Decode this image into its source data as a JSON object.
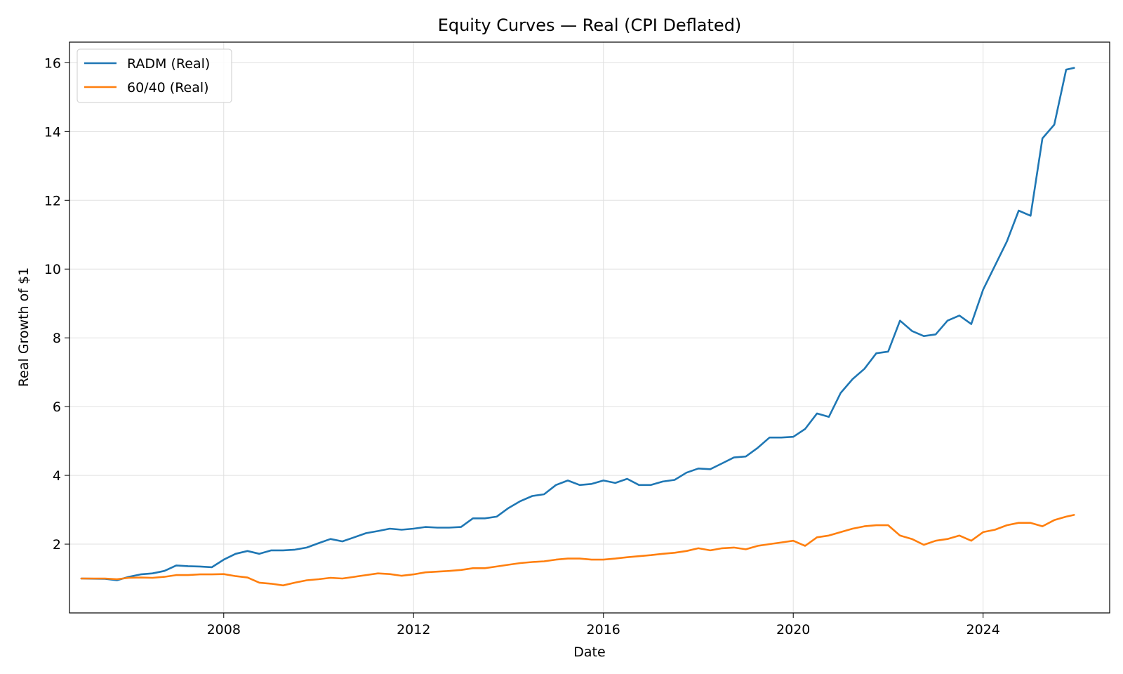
{
  "chart_data": {
    "type": "line",
    "title": "Equity Curves — Real (CPI Deflated)",
    "xlabel": "Date",
    "ylabel": "Real Growth of $1",
    "x_ticks": [
      "2008",
      "2012",
      "2016",
      "2020",
      "2024"
    ],
    "y_ticks": [
      "2",
      "4",
      "6",
      "8",
      "10",
      "12",
      "14",
      "16"
    ],
    "xlim": [
      "2004-10",
      "2026-09"
    ],
    "ylim": [
      0,
      16.6
    ],
    "grid": true,
    "legend_position": "top-left",
    "series": [
      {
        "name": "RADM (Real)",
        "color": "#1f77b4",
        "points": [
          [
            "2005-01",
            1.0
          ],
          [
            "2005-07",
            0.99
          ],
          [
            "2005-10",
            0.95
          ],
          [
            "2006-01",
            1.05
          ],
          [
            "2006-04",
            1.12
          ],
          [
            "2006-07",
            1.15
          ],
          [
            "2006-10",
            1.22
          ],
          [
            "2007-01",
            1.38
          ],
          [
            "2007-04",
            1.36
          ],
          [
            "2007-07",
            1.35
          ],
          [
            "2007-10",
            1.33
          ],
          [
            "2008-01",
            1.55
          ],
          [
            "2008-04",
            1.72
          ],
          [
            "2008-07",
            1.8
          ],
          [
            "2008-10",
            1.72
          ],
          [
            "2009-01",
            1.82
          ],
          [
            "2009-04",
            1.82
          ],
          [
            "2009-07",
            1.84
          ],
          [
            "2009-10",
            1.9
          ],
          [
            "2010-01",
            2.03
          ],
          [
            "2010-04",
            2.15
          ],
          [
            "2010-07",
            2.08
          ],
          [
            "2010-10",
            2.2
          ],
          [
            "2011-01",
            2.32
          ],
          [
            "2011-04",
            2.38
          ],
          [
            "2011-07",
            2.45
          ],
          [
            "2011-10",
            2.42
          ],
          [
            "2012-01",
            2.45
          ],
          [
            "2012-04",
            2.5
          ],
          [
            "2012-07",
            2.48
          ],
          [
            "2012-10",
            2.48
          ],
          [
            "2013-01",
            2.5
          ],
          [
            "2013-04",
            2.75
          ],
          [
            "2013-07",
            2.75
          ],
          [
            "2013-10",
            2.8
          ],
          [
            "2014-01",
            3.05
          ],
          [
            "2014-04",
            3.25
          ],
          [
            "2014-07",
            3.4
          ],
          [
            "2014-10",
            3.45
          ],
          [
            "2015-01",
            3.72
          ],
          [
            "2015-04",
            3.85
          ],
          [
            "2015-07",
            3.72
          ],
          [
            "2015-10",
            3.75
          ],
          [
            "2016-01",
            3.85
          ],
          [
            "2016-04",
            3.78
          ],
          [
            "2016-07",
            3.9
          ],
          [
            "2016-10",
            3.72
          ],
          [
            "2017-01",
            3.72
          ],
          [
            "2017-04",
            3.82
          ],
          [
            "2017-07",
            3.87
          ],
          [
            "2017-10",
            4.08
          ],
          [
            "2018-01",
            4.2
          ],
          [
            "2018-04",
            4.18
          ],
          [
            "2018-07",
            4.35
          ],
          [
            "2018-10",
            4.52
          ],
          [
            "2019-01",
            4.55
          ],
          [
            "2019-04",
            4.8
          ],
          [
            "2019-07",
            5.1
          ],
          [
            "2019-10",
            5.1
          ],
          [
            "2020-01",
            5.12
          ],
          [
            "2020-04",
            5.35
          ],
          [
            "2020-07",
            5.8
          ],
          [
            "2020-10",
            5.7
          ],
          [
            "2021-01",
            6.4
          ],
          [
            "2021-04",
            6.8
          ],
          [
            "2021-07",
            7.1
          ],
          [
            "2021-10",
            7.55
          ],
          [
            "2022-01",
            7.6
          ],
          [
            "2022-04",
            8.5
          ],
          [
            "2022-07",
            8.2
          ],
          [
            "2022-10",
            8.05
          ],
          [
            "2023-01",
            8.1
          ],
          [
            "2023-04",
            8.5
          ],
          [
            "2023-07",
            8.65
          ],
          [
            "2023-10",
            8.4
          ],
          [
            "2024-01",
            9.4
          ],
          [
            "2024-04",
            10.1
          ],
          [
            "2024-07",
            10.8
          ],
          [
            "2024-10",
            11.7
          ],
          [
            "2025-01",
            11.55
          ],
          [
            "2025-04",
            13.8
          ],
          [
            "2025-07",
            14.2
          ],
          [
            "2025-10",
            15.8
          ],
          [
            "2025-12",
            15.85
          ]
        ]
      },
      {
        "name": "60/40 (Real)",
        "color": "#ff7f0e",
        "points": [
          [
            "2005-01",
            1.0
          ],
          [
            "2005-07",
            1.0
          ],
          [
            "2005-10",
            0.98
          ],
          [
            "2006-01",
            1.02
          ],
          [
            "2006-04",
            1.03
          ],
          [
            "2006-07",
            1.02
          ],
          [
            "2006-10",
            1.05
          ],
          [
            "2007-01",
            1.1
          ],
          [
            "2007-04",
            1.1
          ],
          [
            "2007-07",
            1.12
          ],
          [
            "2007-10",
            1.12
          ],
          [
            "2008-01",
            1.13
          ],
          [
            "2008-04",
            1.07
          ],
          [
            "2008-07",
            1.03
          ],
          [
            "2008-10",
            0.88
          ],
          [
            "2009-01",
            0.85
          ],
          [
            "2009-04",
            0.8
          ],
          [
            "2009-07",
            0.88
          ],
          [
            "2009-10",
            0.95
          ],
          [
            "2010-01",
            0.98
          ],
          [
            "2010-04",
            1.02
          ],
          [
            "2010-07",
            1.0
          ],
          [
            "2010-10",
            1.05
          ],
          [
            "2011-01",
            1.1
          ],
          [
            "2011-04",
            1.15
          ],
          [
            "2011-07",
            1.13
          ],
          [
            "2011-10",
            1.08
          ],
          [
            "2012-01",
            1.12
          ],
          [
            "2012-04",
            1.18
          ],
          [
            "2012-07",
            1.2
          ],
          [
            "2012-10",
            1.22
          ],
          [
            "2013-01",
            1.25
          ],
          [
            "2013-04",
            1.3
          ],
          [
            "2013-07",
            1.3
          ],
          [
            "2013-10",
            1.35
          ],
          [
            "2014-01",
            1.4
          ],
          [
            "2014-04",
            1.45
          ],
          [
            "2014-07",
            1.48
          ],
          [
            "2014-10",
            1.5
          ],
          [
            "2015-01",
            1.55
          ],
          [
            "2015-04",
            1.58
          ],
          [
            "2015-07",
            1.58
          ],
          [
            "2015-10",
            1.55
          ],
          [
            "2016-01",
            1.55
          ],
          [
            "2016-04",
            1.58
          ],
          [
            "2016-07",
            1.62
          ],
          [
            "2016-10",
            1.65
          ],
          [
            "2017-01",
            1.68
          ],
          [
            "2017-04",
            1.72
          ],
          [
            "2017-07",
            1.75
          ],
          [
            "2017-10",
            1.8
          ],
          [
            "2018-01",
            1.88
          ],
          [
            "2018-04",
            1.82
          ],
          [
            "2018-07",
            1.88
          ],
          [
            "2018-10",
            1.9
          ],
          [
            "2019-01",
            1.85
          ],
          [
            "2019-04",
            1.95
          ],
          [
            "2019-07",
            2.0
          ],
          [
            "2019-10",
            2.05
          ],
          [
            "2020-01",
            2.1
          ],
          [
            "2020-04",
            1.95
          ],
          [
            "2020-07",
            2.2
          ],
          [
            "2020-10",
            2.25
          ],
          [
            "2021-01",
            2.35
          ],
          [
            "2021-04",
            2.45
          ],
          [
            "2021-07",
            2.52
          ],
          [
            "2021-10",
            2.55
          ],
          [
            "2022-01",
            2.55
          ],
          [
            "2022-04",
            2.25
          ],
          [
            "2022-07",
            2.15
          ],
          [
            "2022-10",
            1.98
          ],
          [
            "2023-01",
            2.1
          ],
          [
            "2023-04",
            2.15
          ],
          [
            "2023-07",
            2.25
          ],
          [
            "2023-10",
            2.1
          ],
          [
            "2024-01",
            2.35
          ],
          [
            "2024-04",
            2.42
          ],
          [
            "2024-07",
            2.55
          ],
          [
            "2024-10",
            2.62
          ],
          [
            "2025-01",
            2.62
          ],
          [
            "2025-04",
            2.52
          ],
          [
            "2025-07",
            2.7
          ],
          [
            "2025-10",
            2.8
          ],
          [
            "2025-12",
            2.85
          ]
        ]
      }
    ]
  }
}
